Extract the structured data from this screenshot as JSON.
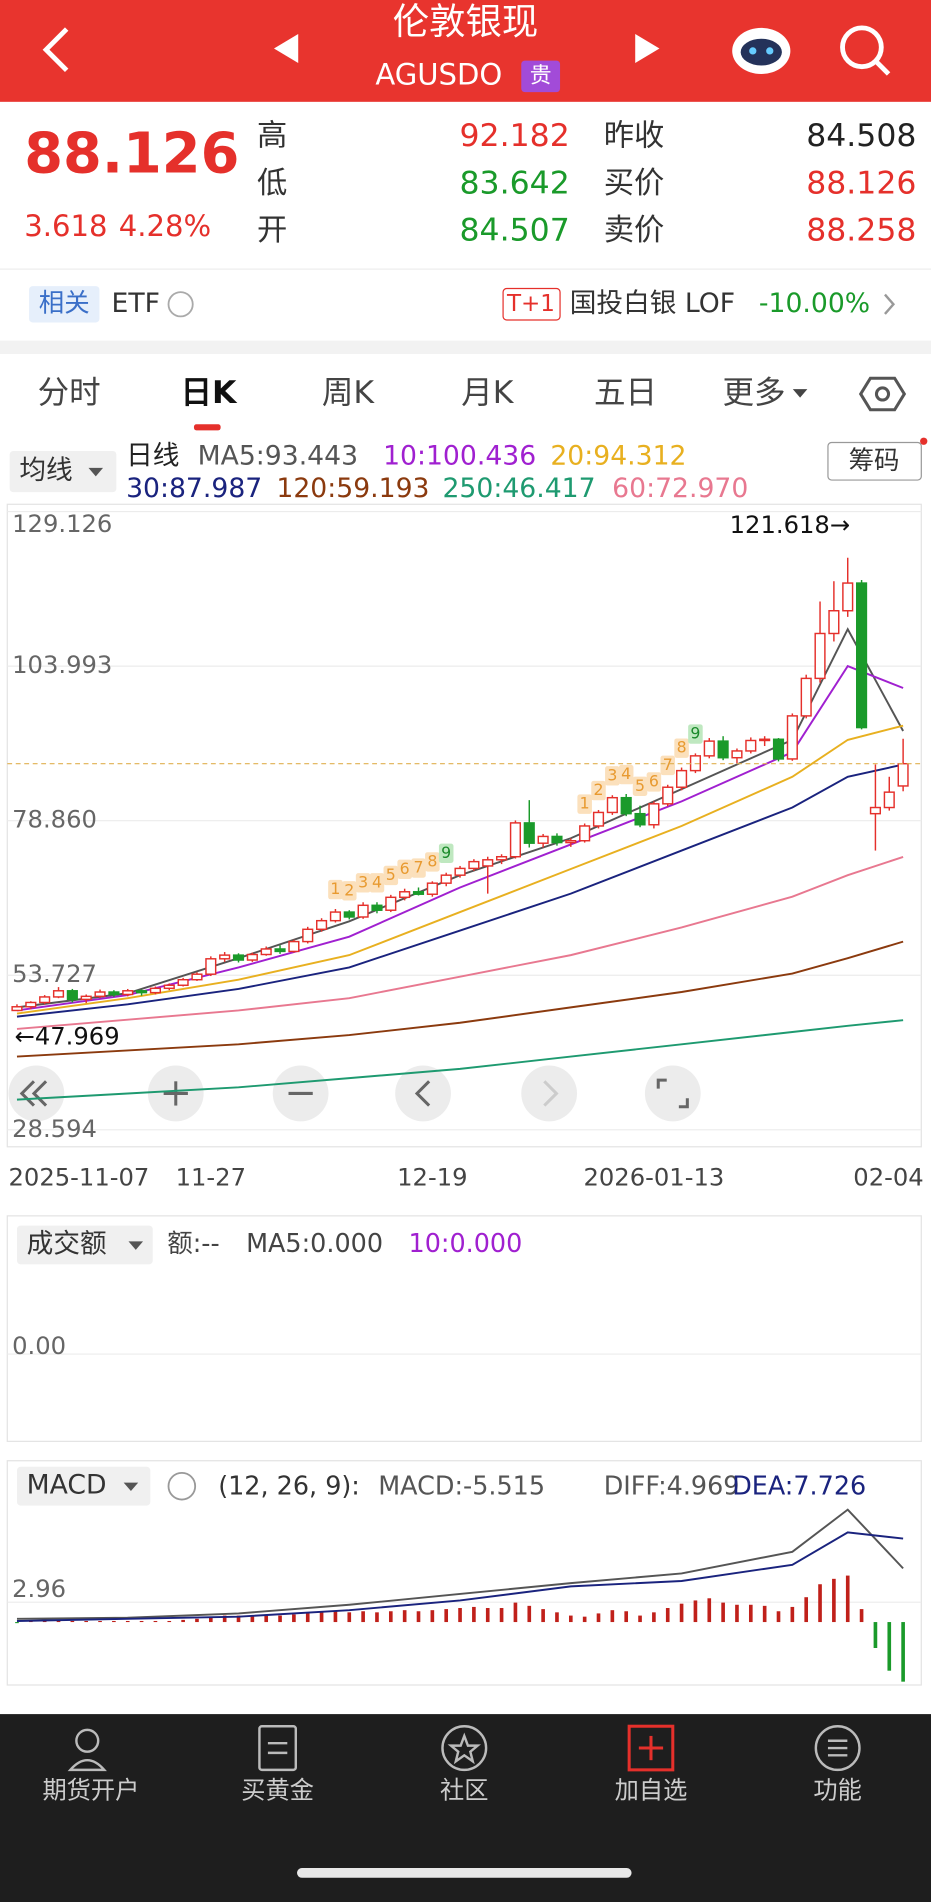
{
  "header": {
    "title": "伦敦银现",
    "code": "AGUSDO",
    "badge": "贵"
  },
  "quote": {
    "price": "88.126",
    "change": "3.618",
    "change_pct": "4.28%",
    "high_label": "高",
    "high": "92.182",
    "low_label": "低",
    "low": "83.642",
    "open_label": "开",
    "open": "84.507",
    "prev_label": "昨收",
    "prev": "84.508",
    "bid_label": "买价",
    "bid": "88.126",
    "ask_label": "卖价",
    "ask": "88.258"
  },
  "related": {
    "label": "相关",
    "etf": "ETF",
    "tag": "T+1",
    "fund": "国投白银 LOF",
    "fund_change": "-10.00%"
  },
  "tabs": [
    "分时",
    "日K",
    "周K",
    "月K",
    "五日",
    "更多"
  ],
  "nav": [
    "期货开户",
    "买黄金",
    "社区",
    "加自选",
    "功能"
  ],
  "chart_data": [
    {
      "type": "candlestick",
      "indicator": "均线",
      "period": "日线",
      "chip_button": "筹码",
      "categories": [
        "2025-11-07",
        null,
        null,
        null,
        null,
        null,
        null,
        null,
        null,
        null,
        null,
        null,
        null,
        null,
        "11-27",
        null,
        null,
        null,
        null,
        null,
        null,
        null,
        null,
        null,
        null,
        null,
        null,
        null,
        null,
        null,
        "12-19",
        null,
        null,
        null,
        null,
        null,
        null,
        null,
        null,
        null,
        null,
        null,
        null,
        null,
        null,
        null,
        "2026-01-13",
        null,
        null,
        null,
        null,
        null,
        null,
        null,
        null,
        null,
        null,
        null,
        null,
        null,
        null,
        null,
        null,
        null,
        "02-04"
      ],
      "candles": [
        [
          48,
          49,
          47.969,
          48.6
        ],
        [
          48.6,
          49.5,
          48.2,
          49.3
        ],
        [
          49.3,
          50.5,
          49,
          50.2
        ],
        [
          50.2,
          51.8,
          50,
          51.2
        ],
        [
          51.2,
          51.5,
          49.3,
          49.8
        ],
        [
          49.8,
          50.6,
          49.2,
          50.3
        ],
        [
          50.3,
          51.4,
          50,
          51
        ],
        [
          51,
          51.3,
          50.2,
          50.6
        ],
        [
          50.6,
          51.5,
          50.3,
          51.2
        ],
        [
          51.2,
          51.4,
          50.4,
          50.9
        ],
        [
          50.9,
          51.9,
          50.6,
          51.6
        ],
        [
          51.6,
          52.4,
          51.3,
          52.1
        ],
        [
          52.1,
          53.3,
          51.9,
          53
        ],
        [
          53,
          54.2,
          52.8,
          53.9
        ],
        [
          53.9,
          56.8,
          53.6,
          56.4
        ],
        [
          56.4,
          57.5,
          55.9,
          57
        ],
        [
          57,
          57.3,
          55.8,
          56.2
        ],
        [
          56.2,
          57.4,
          55.9,
          57.1
        ],
        [
          57.1,
          58.4,
          56.9,
          58
        ],
        [
          58,
          58.6,
          57.2,
          57.6
        ],
        [
          57.6,
          59.5,
          57.4,
          59.2
        ],
        [
          59.2,
          61.6,
          58.9,
          61.2
        ],
        [
          61.2,
          63,
          60.8,
          62.6
        ],
        [
          62.6,
          64.5,
          62.3,
          64
        ],
        [
          64,
          64.3,
          62.8,
          63.2
        ],
        [
          63.2,
          65.6,
          62.9,
          65.1
        ],
        [
          65.1,
          65.6,
          63.8,
          64.3
        ],
        [
          64.3,
          66.8,
          64,
          66.4
        ],
        [
          66.4,
          67.8,
          65.9,
          67.3
        ],
        [
          67.3,
          68,
          66.7,
          66.9
        ],
        [
          66.9,
          69,
          66.5,
          68.7
        ],
        [
          68.7,
          70.4,
          68.2,
          70
        ],
        [
          70,
          71.5,
          69.6,
          71.1
        ],
        [
          71.1,
          72.6,
          70.7,
          72.2
        ],
        [
          71.5,
          73,
          67,
          72.5
        ],
        [
          72.5,
          73.4,
          71.8,
          73
        ],
        [
          73,
          78.9,
          72.7,
          78.5
        ],
        [
          78.5,
          82.2,
          74.5,
          75.2
        ],
        [
          75.2,
          76.7,
          74.5,
          76.3
        ],
        [
          76.3,
          76.8,
          74.8,
          75.3
        ],
        [
          75.3,
          76,
          74.6,
          75.6
        ],
        [
          75.6,
          78.4,
          75.3,
          78
        ],
        [
          78,
          80.6,
          77.6,
          80.2
        ],
        [
          80.2,
          83,
          79.8,
          82.6
        ],
        [
          82.6,
          83.2,
          79.6,
          80
        ],
        [
          80,
          81.3,
          77.8,
          78.2
        ],
        [
          78.2,
          82,
          77.6,
          81.6
        ],
        [
          81.6,
          84.7,
          81.2,
          84.3
        ],
        [
          84.3,
          87.5,
          83.8,
          87
        ],
        [
          87,
          89.8,
          86.6,
          89.4
        ],
        [
          89.4,
          92.3,
          89,
          91.8
        ],
        [
          91.8,
          92.6,
          88.7,
          89.1
        ],
        [
          89.1,
          90.6,
          88.2,
          90.2
        ],
        [
          90.2,
          92.4,
          89.8,
          91.9
        ],
        [
          91.9,
          92.6,
          91,
          92.1
        ],
        [
          92.1,
          92.3,
          88.5,
          88.9
        ],
        [
          88.9,
          96.3,
          88.6,
          95.9
        ],
        [
          95.9,
          102.6,
          95.5,
          102
        ],
        [
          102,
          114.5,
          101.3,
          109.3
        ],
        [
          109.3,
          117.8,
          108,
          113
        ],
        [
          113,
          121.618,
          112,
          117.5
        ],
        [
          117.5,
          118,
          93.7,
          94
        ],
        [
          80,
          88,
          74,
          81
        ],
        [
          81,
          86,
          80.5,
          83.5
        ],
        [
          84.507,
          92.182,
          83.642,
          88.126
        ]
      ],
      "up_color": "#e5302b",
      "down_color": "#1a9a2a",
      "td_labels": [
        null,
        null,
        null,
        null,
        null,
        null,
        null,
        null,
        null,
        null,
        null,
        null,
        null,
        null,
        null,
        null,
        null,
        null,
        null,
        null,
        null,
        null,
        null,
        "1",
        "2",
        "3",
        "4",
        "5",
        "6",
        "7",
        "8",
        "9",
        null,
        null,
        null,
        null,
        null,
        null,
        null,
        null,
        null,
        "1",
        "2",
        "3",
        "4",
        "5",
        "6",
        "7",
        "8",
        "9",
        null,
        null,
        null,
        null,
        null,
        null,
        null,
        null,
        null,
        null,
        null,
        null,
        null,
        null,
        null
      ],
      "ma_lines": [
        {
          "name": "MA5:93.443",
          "color": "#555555",
          "x": [
            0,
            8,
            16,
            24,
            32,
            40,
            48,
            56,
            60,
            64
          ],
          "values": [
            48.5,
            50.8,
            56.5,
            62.5,
            70,
            76,
            84,
            92,
            110,
            93.443
          ]
        },
        {
          "name": "10:100.436",
          "color": "#a020d0",
          "x": [
            0,
            8,
            16,
            24,
            32,
            40,
            48,
            56,
            60,
            64
          ],
          "values": [
            48,
            50.5,
            55,
            60,
            68,
            75,
            82,
            90,
            104,
            100.436
          ]
        },
        {
          "name": "20:94.312",
          "color": "#e8b020",
          "x": [
            0,
            8,
            16,
            24,
            32,
            40,
            48,
            56,
            60,
            64
          ],
          "values": [
            47.5,
            50,
            53,
            57,
            64,
            71,
            78,
            86,
            92,
            94.312
          ]
        },
        {
          "name": "30:87.987",
          "color": "#1a237e",
          "x": [
            0,
            8,
            16,
            24,
            32,
            40,
            48,
            56,
            60,
            64
          ],
          "values": [
            47,
            49,
            51.5,
            55,
            61,
            67,
            74,
            81,
            86,
            87.987
          ]
        },
        {
          "name": "120:59.193",
          "color": "#8b3a0e",
          "x": [
            0,
            8,
            16,
            24,
            32,
            40,
            48,
            56,
            60,
            64
          ],
          "values": [
            40.5,
            41.5,
            42.5,
            44,
            46,
            48.5,
            51,
            54,
            56.5,
            59.193
          ]
        },
        {
          "name": "250:46.417",
          "color": "#1e9a70",
          "x": [
            0,
            8,
            16,
            24,
            32,
            40,
            48,
            56,
            60,
            64
          ],
          "values": [
            33.5,
            34.5,
            35.5,
            37,
            38.5,
            40.5,
            42.5,
            44.5,
            45.5,
            46.417
          ]
        },
        {
          "name": "60:72.970",
          "color": "#e87890",
          "x": [
            0,
            8,
            16,
            24,
            32,
            40,
            48,
            56,
            60,
            64
          ],
          "values": [
            45,
            46.5,
            48,
            50,
            53.5,
            57,
            61.5,
            66.5,
            70,
            72.97
          ]
        }
      ],
      "ylim": [
        28.594,
        129.126
      ],
      "yticks": [
        129.126,
        103.993,
        {
          "value": 78.86,
          "label": "78.860"
        },
        53.727,
        28.594
      ],
      "max_label": "121.618→",
      "min_label": "←47.969",
      "grid": true
    },
    {
      "type": "bar",
      "indicator": "成交额",
      "amount_label": "额:--",
      "ma_labels": [
        "MA5:0.000",
        "10:0.000"
      ],
      "yticks": [
        {
          "value": 0,
          "label": "0.00"
        }
      ]
    },
    {
      "type": "macd",
      "indicator": "MACD",
      "params": "(12, 26, 9):",
      "macd_label": "MACD:-5.515",
      "series": [
        {
          "name": "DIFF:4.969",
          "color": "#555555",
          "x": [
            0,
            8,
            16,
            24,
            32,
            40,
            48,
            56,
            60,
            64
          ],
          "values": [
            0.3,
            0.4,
            0.8,
            1.6,
            2.6,
            3.6,
            4.5,
            6.5,
            10.4,
            4.969
          ]
        },
        {
          "name": "DEA:7.726",
          "color": "#1a237e",
          "x": [
            0,
            8,
            16,
            24,
            32,
            40,
            48,
            56,
            60,
            64
          ],
          "values": [
            0.1,
            0.3,
            0.5,
            1.1,
            2,
            3.3,
            3.8,
            5.3,
            8.3,
            7.726
          ]
        }
      ],
      "histogram": [
        -0.1,
        0.1,
        0.2,
        0.2,
        0.1,
        0.1,
        0.1,
        0.1,
        0.1,
        0.1,
        0.1,
        0.1,
        0.2,
        0.3,
        0.5,
        0.6,
        0.6,
        0.6,
        0.7,
        0.6,
        0.7,
        0.8,
        0.9,
        1,
        0.9,
        1,
        0.9,
        1,
        1.1,
        1,
        1.1,
        1.2,
        1.3,
        1.4,
        1.3,
        1.3,
        1.8,
        1.5,
        1.2,
        0.9,
        0.6,
        0.5,
        0.8,
        1.1,
        1,
        0.6,
        0.9,
        1.3,
        1.7,
        2,
        2.2,
        1.8,
        1.6,
        1.6,
        1.5,
        1,
        1.4,
        2.3,
        3.5,
        4,
        4.3,
        1.2,
        -2.4,
        -4.5,
        -5.515
      ],
      "up_color": "#c0201a",
      "down_color": "#1a9a2a",
      "ylim": [
        -5.6,
        11
      ],
      "yticks": [
        2.96
      ]
    }
  ]
}
